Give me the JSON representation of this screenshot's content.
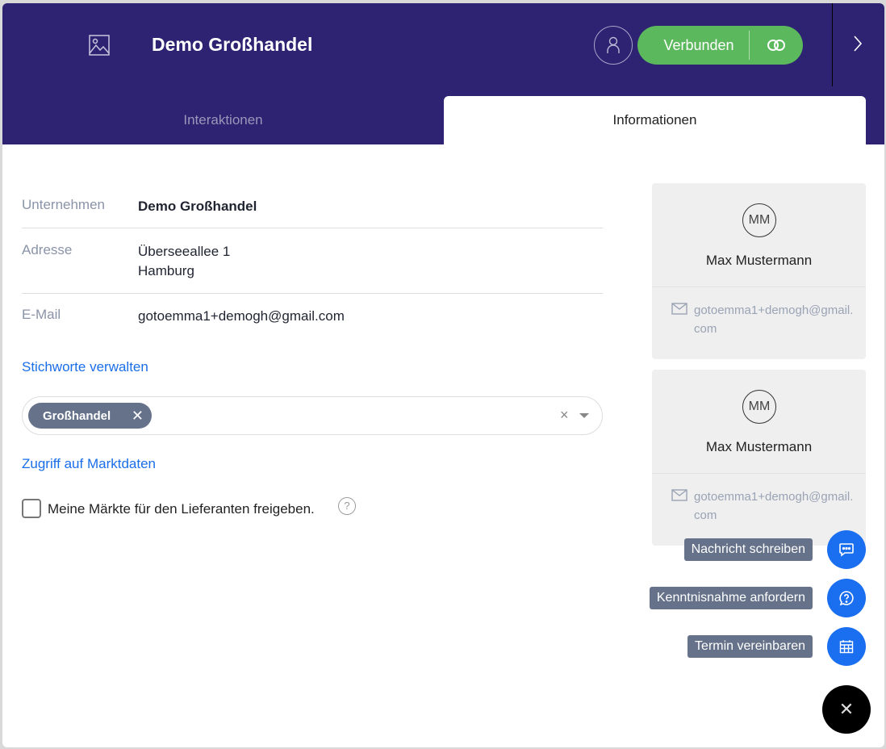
{
  "header": {
    "title": "Demo Großhandel",
    "status_label": "Verbunden",
    "colors": {
      "header_bg": "#2e2272",
      "connected": "#5cb85c",
      "accent": "#1a6ef0"
    }
  },
  "tabs": [
    {
      "label": "Interaktionen",
      "active": false
    },
    {
      "label": "Informationen",
      "active": true
    }
  ],
  "info": {
    "company": {
      "label": "Unternehmen",
      "value": "Demo Großhandel"
    },
    "address": {
      "label": "Adresse",
      "line1": "Überseeallee 1",
      "line2": "Hamburg"
    },
    "email": {
      "label": "E-Mail",
      "value": "gotoemma1+demogh@gmail.com"
    }
  },
  "tags": {
    "manage_link": "Stichworte verwalten",
    "items": [
      "Großhandel"
    ]
  },
  "market": {
    "link": "Zugriff auf Marktdaten",
    "checkbox_label": "Meine Märkte für den Lieferanten freigeben.",
    "checked": false
  },
  "contacts": [
    {
      "initials": "MM",
      "name": "Max Mustermann",
      "email": "gotoemma1+demogh@gmail.com"
    },
    {
      "initials": "MM",
      "name": "Max Mustermann",
      "email": "gotoemma1+demogh@gmail.com"
    }
  ],
  "actions": [
    {
      "label": "Nachricht schreiben",
      "icon": "chat-icon"
    },
    {
      "label": "Kenntnisnahme anfordern",
      "icon": "question-bubble-icon"
    },
    {
      "label": "Termin vereinbaren",
      "icon": "calendar-icon"
    }
  ]
}
